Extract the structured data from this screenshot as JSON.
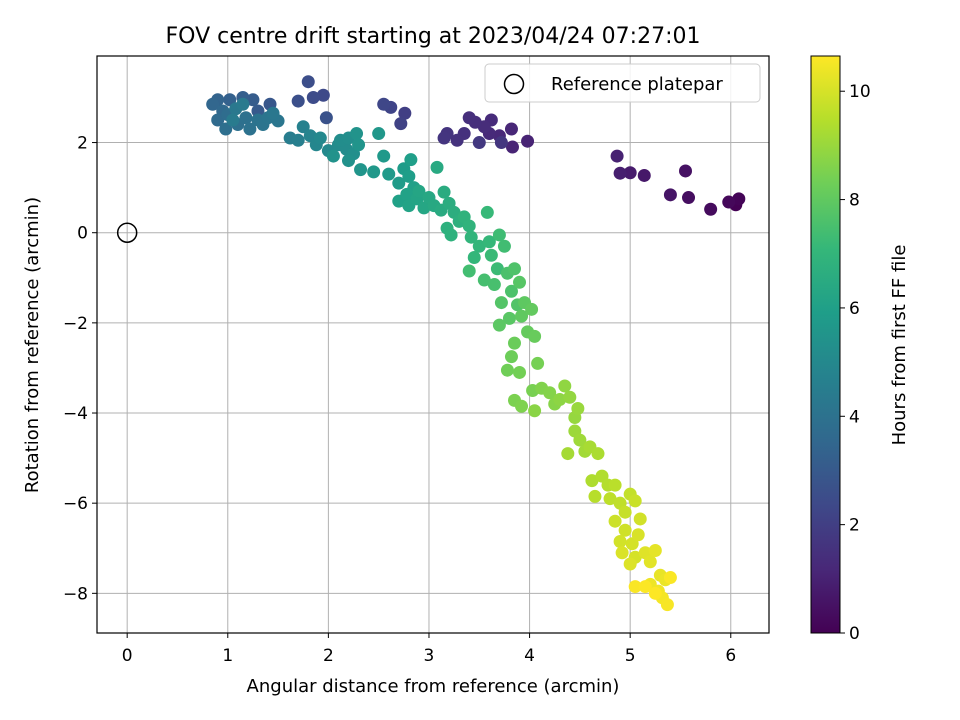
{
  "chart_data": {
    "type": "scatter",
    "title": "FOV centre drift starting at 2023/04/24 07:27:01",
    "xlabel": "Angular distance from reference (arcmin)",
    "ylabel": "Rotation from reference (arcmin)",
    "xlim": [
      -0.3,
      6.38
    ],
    "ylim": [
      -8.88,
      3.92
    ],
    "xticks": [
      0,
      1,
      2,
      3,
      4,
      5,
      6
    ],
    "yticks": [
      -8,
      -6,
      -4,
      -2,
      0,
      2
    ],
    "grid": true,
    "legend": {
      "position": "top-right",
      "entries": [
        "Reference platepar"
      ]
    },
    "reference_point": {
      "x": 0,
      "y": 0
    },
    "colorbar": {
      "label": "Hours from first FF file",
      "colormap": "viridis",
      "range": [
        0,
        10.65
      ],
      "ticks": [
        0,
        2,
        4,
        6,
        8,
        10
      ]
    },
    "points": [
      {
        "x": 6.05,
        "y": 0.62,
        "t": 0.0
      },
      {
        "x": 6.08,
        "y": 0.75,
        "t": 0.1
      },
      {
        "x": 5.98,
        "y": 0.68,
        "t": 0.2
      },
      {
        "x": 5.8,
        "y": 0.52,
        "t": 0.3
      },
      {
        "x": 5.58,
        "y": 0.78,
        "t": 0.4
      },
      {
        "x": 5.55,
        "y": 1.37,
        "t": 0.5
      },
      {
        "x": 5.4,
        "y": 0.84,
        "t": 0.6
      },
      {
        "x": 5.14,
        "y": 1.27,
        "t": 0.7
      },
      {
        "x": 5.0,
        "y": 1.33,
        "t": 0.8
      },
      {
        "x": 4.9,
        "y": 1.32,
        "t": 0.9
      },
      {
        "x": 4.87,
        "y": 1.7,
        "t": 1.0
      },
      {
        "x": 3.98,
        "y": 2.03,
        "t": 1.05
      },
      {
        "x": 3.83,
        "y": 1.9,
        "t": 1.1
      },
      {
        "x": 3.82,
        "y": 2.3,
        "t": 1.15
      },
      {
        "x": 3.7,
        "y": 2.15,
        "t": 1.2
      },
      {
        "x": 3.6,
        "y": 2.2,
        "t": 1.25
      },
      {
        "x": 3.62,
        "y": 2.5,
        "t": 1.3
      },
      {
        "x": 3.55,
        "y": 2.35,
        "t": 1.35
      },
      {
        "x": 3.46,
        "y": 2.45,
        "t": 1.4
      },
      {
        "x": 3.4,
        "y": 2.55,
        "t": 1.45
      },
      {
        "x": 3.35,
        "y": 2.2,
        "t": 1.5
      },
      {
        "x": 3.28,
        "y": 2.05,
        "t": 1.55
      },
      {
        "x": 3.18,
        "y": 2.2,
        "t": 1.6
      },
      {
        "x": 3.15,
        "y": 2.1,
        "t": 1.65
      },
      {
        "x": 3.72,
        "y": 2.0,
        "t": 1.7
      },
      {
        "x": 3.5,
        "y": 2.0,
        "t": 1.75
      },
      {
        "x": 2.76,
        "y": 2.65,
        "t": 2.0
      },
      {
        "x": 2.72,
        "y": 2.42,
        "t": 2.1
      },
      {
        "x": 2.62,
        "y": 2.78,
        "t": 2.2
      },
      {
        "x": 2.55,
        "y": 2.85,
        "t": 2.3
      },
      {
        "x": 1.95,
        "y": 3.05,
        "t": 2.4
      },
      {
        "x": 1.85,
        "y": 3.0,
        "t": 2.5
      },
      {
        "x": 1.8,
        "y": 3.35,
        "t": 2.55
      },
      {
        "x": 1.7,
        "y": 2.92,
        "t": 2.6
      },
      {
        "x": 1.98,
        "y": 2.55,
        "t": 2.7
      },
      {
        "x": 1.42,
        "y": 2.85,
        "t": 2.9
      },
      {
        "x": 1.3,
        "y": 2.7,
        "t": 3.0
      },
      {
        "x": 1.25,
        "y": 2.95,
        "t": 3.1
      },
      {
        "x": 1.15,
        "y": 3.0,
        "t": 3.2
      },
      {
        "x": 1.02,
        "y": 2.95,
        "t": 3.3
      },
      {
        "x": 0.9,
        "y": 2.95,
        "t": 3.4
      },
      {
        "x": 0.85,
        "y": 2.85,
        "t": 3.5
      },
      {
        "x": 0.95,
        "y": 2.7,
        "t": 3.6
      },
      {
        "x": 0.9,
        "y": 2.5,
        "t": 3.7
      },
      {
        "x": 1.0,
        "y": 2.62,
        "t": 3.8
      },
      {
        "x": 0.98,
        "y": 2.3,
        "t": 3.85
      },
      {
        "x": 1.1,
        "y": 2.4,
        "t": 3.9
      },
      {
        "x": 1.18,
        "y": 2.55,
        "t": 3.95
      },
      {
        "x": 1.22,
        "y": 2.3,
        "t": 4.0
      },
      {
        "x": 1.3,
        "y": 2.5,
        "t": 4.05
      },
      {
        "x": 1.35,
        "y": 2.4,
        "t": 4.1
      },
      {
        "x": 1.4,
        "y": 2.55,
        "t": 4.15
      },
      {
        "x": 1.5,
        "y": 2.48,
        "t": 4.2
      },
      {
        "x": 1.45,
        "y": 2.65,
        "t": 4.25
      },
      {
        "x": 1.08,
        "y": 2.75,
        "t": 4.3
      },
      {
        "x": 1.15,
        "y": 2.85,
        "t": 4.35
      },
      {
        "x": 1.05,
        "y": 2.5,
        "t": 4.4
      },
      {
        "x": 1.62,
        "y": 2.1,
        "t": 4.5
      },
      {
        "x": 1.7,
        "y": 2.05,
        "t": 4.6
      },
      {
        "x": 1.75,
        "y": 2.35,
        "t": 4.7
      },
      {
        "x": 1.82,
        "y": 2.15,
        "t": 4.8
      },
      {
        "x": 1.88,
        "y": 1.95,
        "t": 4.9
      },
      {
        "x": 1.92,
        "y": 2.1,
        "t": 5.0
      },
      {
        "x": 2.0,
        "y": 1.82,
        "t": 5.05
      },
      {
        "x": 2.1,
        "y": 1.95,
        "t": 5.1
      },
      {
        "x": 2.18,
        "y": 1.85,
        "t": 5.15
      },
      {
        "x": 2.12,
        "y": 2.05,
        "t": 5.2
      },
      {
        "x": 2.2,
        "y": 2.1,
        "t": 5.25
      },
      {
        "x": 2.25,
        "y": 1.75,
        "t": 5.3
      },
      {
        "x": 2.2,
        "y": 1.6,
        "t": 5.35
      },
      {
        "x": 2.05,
        "y": 1.7,
        "t": 5.4
      },
      {
        "x": 2.28,
        "y": 2.2,
        "t": 5.45
      },
      {
        "x": 2.3,
        "y": 1.95,
        "t": 5.5
      },
      {
        "x": 2.32,
        "y": 1.4,
        "t": 5.55
      },
      {
        "x": 2.5,
        "y": 2.2,
        "t": 5.6
      },
      {
        "x": 2.45,
        "y": 1.35,
        "t": 5.65
      },
      {
        "x": 2.55,
        "y": 1.7,
        "t": 5.7
      },
      {
        "x": 2.6,
        "y": 1.3,
        "t": 5.75
      },
      {
        "x": 2.7,
        "y": 1.1,
        "t": 5.8
      },
      {
        "x": 2.75,
        "y": 1.42,
        "t": 5.85
      },
      {
        "x": 2.8,
        "y": 1.25,
        "t": 5.9
      },
      {
        "x": 2.82,
        "y": 1.62,
        "t": 5.95
      },
      {
        "x": 2.85,
        "y": 1.0,
        "t": 6.0
      },
      {
        "x": 2.7,
        "y": 0.7,
        "t": 6.05
      },
      {
        "x": 2.78,
        "y": 0.85,
        "t": 6.1
      },
      {
        "x": 2.8,
        "y": 0.6,
        "t": 6.15
      },
      {
        "x": 2.88,
        "y": 0.75,
        "t": 6.2
      },
      {
        "x": 2.9,
        "y": 0.92,
        "t": 6.25
      },
      {
        "x": 2.95,
        "y": 0.55,
        "t": 6.3
      },
      {
        "x": 3.0,
        "y": 0.78,
        "t": 6.35
      },
      {
        "x": 3.05,
        "y": 0.6,
        "t": 6.4
      },
      {
        "x": 3.08,
        "y": 1.45,
        "t": 6.45
      },
      {
        "x": 3.12,
        "y": 0.5,
        "t": 6.5
      },
      {
        "x": 3.15,
        "y": 0.9,
        "t": 6.55
      },
      {
        "x": 3.2,
        "y": 0.65,
        "t": 6.6
      },
      {
        "x": 3.25,
        "y": 0.45,
        "t": 6.65
      },
      {
        "x": 3.3,
        "y": 0.25,
        "t": 6.7
      },
      {
        "x": 3.18,
        "y": 0.1,
        "t": 6.75
      },
      {
        "x": 3.22,
        "y": -0.05,
        "t": 6.8
      },
      {
        "x": 3.35,
        "y": 0.35,
        "t": 6.85
      },
      {
        "x": 3.4,
        "y": 0.15,
        "t": 6.9
      },
      {
        "x": 3.42,
        "y": -0.1,
        "t": 6.95
      },
      {
        "x": 3.5,
        "y": -0.3,
        "t": 7.0
      },
      {
        "x": 3.45,
        "y": -0.55,
        "t": 7.05
      },
      {
        "x": 3.6,
        "y": -0.2,
        "t": 7.1
      },
      {
        "x": 3.58,
        "y": 0.45,
        "t": 7.15
      },
      {
        "x": 3.62,
        "y": -0.5,
        "t": 7.2
      },
      {
        "x": 3.68,
        "y": -0.8,
        "t": 7.25
      },
      {
        "x": 3.7,
        "y": -0.05,
        "t": 7.3
      },
      {
        "x": 3.75,
        "y": -0.3,
        "t": 7.35
      },
      {
        "x": 3.4,
        "y": -0.85,
        "t": 7.4
      },
      {
        "x": 3.55,
        "y": -1.05,
        "t": 7.45
      },
      {
        "x": 3.65,
        "y": -1.15,
        "t": 7.5
      },
      {
        "x": 3.78,
        "y": -0.9,
        "t": 7.55
      },
      {
        "x": 3.82,
        "y": -1.3,
        "t": 7.6
      },
      {
        "x": 3.85,
        "y": -0.8,
        "t": 7.65
      },
      {
        "x": 3.88,
        "y": -1.6,
        "t": 7.7
      },
      {
        "x": 3.72,
        "y": -1.55,
        "t": 7.75
      },
      {
        "x": 3.9,
        "y": -1.1,
        "t": 7.8
      },
      {
        "x": 3.8,
        "y": -1.9,
        "t": 7.85
      },
      {
        "x": 3.7,
        "y": -2.05,
        "t": 7.9
      },
      {
        "x": 3.95,
        "y": -1.55,
        "t": 7.95
      },
      {
        "x": 3.92,
        "y": -1.85,
        "t": 8.0
      },
      {
        "x": 4.02,
        "y": -1.7,
        "t": 8.05
      },
      {
        "x": 3.98,
        "y": -2.2,
        "t": 8.1
      },
      {
        "x": 4.05,
        "y": -2.3,
        "t": 8.15
      },
      {
        "x": 3.85,
        "y": -2.45,
        "t": 8.2
      },
      {
        "x": 3.82,
        "y": -2.75,
        "t": 8.25
      },
      {
        "x": 3.78,
        "y": -3.05,
        "t": 8.3
      },
      {
        "x": 3.9,
        "y": -3.1,
        "t": 8.35
      },
      {
        "x": 4.08,
        "y": -2.9,
        "t": 8.4
      },
      {
        "x": 4.03,
        "y": -3.5,
        "t": 8.45
      },
      {
        "x": 3.85,
        "y": -3.72,
        "t": 8.5
      },
      {
        "x": 3.92,
        "y": -3.85,
        "t": 8.55
      },
      {
        "x": 4.12,
        "y": -3.45,
        "t": 8.6
      },
      {
        "x": 4.2,
        "y": -3.55,
        "t": 8.65
      },
      {
        "x": 4.25,
        "y": -3.8,
        "t": 8.7
      },
      {
        "x": 4.05,
        "y": -3.95,
        "t": 8.75
      },
      {
        "x": 4.3,
        "y": -3.7,
        "t": 8.8
      },
      {
        "x": 4.35,
        "y": -3.4,
        "t": 8.85
      },
      {
        "x": 4.4,
        "y": -3.65,
        "t": 8.9
      },
      {
        "x": 4.45,
        "y": -4.1,
        "t": 8.95
      },
      {
        "x": 4.48,
        "y": -3.9,
        "t": 9.0
      },
      {
        "x": 4.45,
        "y": -4.4,
        "t": 9.05
      },
      {
        "x": 4.5,
        "y": -4.6,
        "t": 9.1
      },
      {
        "x": 4.55,
        "y": -4.85,
        "t": 9.15
      },
      {
        "x": 4.38,
        "y": -4.9,
        "t": 9.2
      },
      {
        "x": 4.6,
        "y": -4.75,
        "t": 9.25
      },
      {
        "x": 4.68,
        "y": -4.9,
        "t": 9.3
      },
      {
        "x": 4.62,
        "y": -5.5,
        "t": 9.35
      },
      {
        "x": 4.72,
        "y": -5.4,
        "t": 9.4
      },
      {
        "x": 4.78,
        "y": -5.6,
        "t": 9.45
      },
      {
        "x": 4.65,
        "y": -5.85,
        "t": 9.5
      },
      {
        "x": 4.85,
        "y": -5.6,
        "t": 9.55
      },
      {
        "x": 4.8,
        "y": -5.9,
        "t": 9.6
      },
      {
        "x": 4.9,
        "y": -6.0,
        "t": 9.65
      },
      {
        "x": 5.0,
        "y": -5.8,
        "t": 9.7
      },
      {
        "x": 4.95,
        "y": -6.2,
        "t": 9.75
      },
      {
        "x": 5.05,
        "y": -5.95,
        "t": 9.8
      },
      {
        "x": 4.85,
        "y": -6.4,
        "t": 9.85
      },
      {
        "x": 4.95,
        "y": -6.6,
        "t": 9.9
      },
      {
        "x": 5.1,
        "y": -6.35,
        "t": 9.92
      },
      {
        "x": 4.9,
        "y": -6.85,
        "t": 9.95
      },
      {
        "x": 5.02,
        "y": -6.9,
        "t": 9.97
      },
      {
        "x": 5.05,
        "y": -7.2,
        "t": 10.0
      },
      {
        "x": 5.08,
        "y": -6.7,
        "t": 10.05
      },
      {
        "x": 4.92,
        "y": -7.1,
        "t": 10.08
      },
      {
        "x": 5.0,
        "y": -7.35,
        "t": 10.1
      },
      {
        "x": 5.15,
        "y": -7.1,
        "t": 10.15
      },
      {
        "x": 5.2,
        "y": -7.3,
        "t": 10.2
      },
      {
        "x": 5.25,
        "y": -7.05,
        "t": 10.25
      },
      {
        "x": 5.3,
        "y": -7.6,
        "t": 10.3
      },
      {
        "x": 5.35,
        "y": -7.7,
        "t": 10.35
      },
      {
        "x": 5.2,
        "y": -7.8,
        "t": 10.4
      },
      {
        "x": 5.28,
        "y": -7.95,
        "t": 10.45
      },
      {
        "x": 5.32,
        "y": -8.1,
        "t": 10.5
      },
      {
        "x": 5.37,
        "y": -8.25,
        "t": 10.55
      },
      {
        "x": 5.05,
        "y": -7.85,
        "t": 10.58
      },
      {
        "x": 5.4,
        "y": -7.65,
        "t": 10.6
      },
      {
        "x": 5.15,
        "y": -7.85,
        "t": 10.62
      },
      {
        "x": 5.25,
        "y": -8.0,
        "t": 10.65
      }
    ]
  }
}
